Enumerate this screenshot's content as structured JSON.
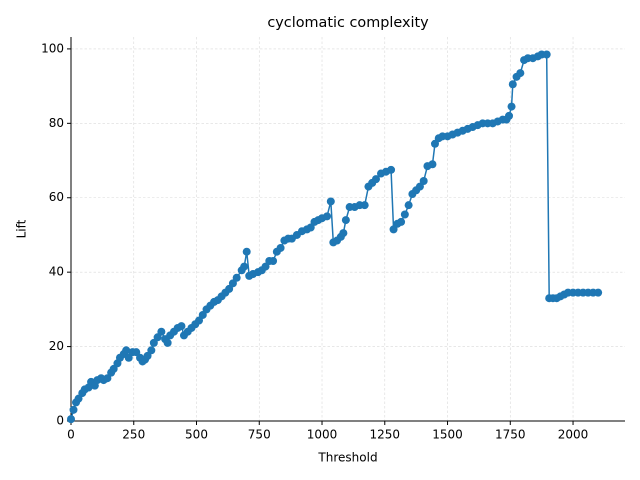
{
  "chart_data": {
    "type": "line",
    "title": "cyclomatic complexity",
    "x_label": "Threshold",
    "y_label": "Lift",
    "color": "#1f77b4",
    "grid": true,
    "markers": true,
    "x": [
      0,
      10,
      20,
      30,
      45,
      55,
      70,
      80,
      95,
      105,
      120,
      130,
      145,
      160,
      170,
      185,
      195,
      210,
      220,
      230,
      245,
      260,
      275,
      285,
      295,
      305,
      320,
      330,
      345,
      360,
      375,
      385,
      395,
      410,
      425,
      440,
      450,
      465,
      480,
      495,
      510,
      525,
      540,
      555,
      570,
      585,
      600,
      615,
      630,
      645,
      660,
      680,
      690,
      700,
      710,
      725,
      745,
      760,
      775,
      790,
      805,
      820,
      835,
      850,
      865,
      880,
      900,
      920,
      940,
      955,
      970,
      985,
      1000,
      1020,
      1035,
      1045,
      1060,
      1075,
      1085,
      1095,
      1110,
      1130,
      1150,
      1170,
      1185,
      1200,
      1215,
      1235,
      1255,
      1275,
      1285,
      1300,
      1315,
      1330,
      1345,
      1360,
      1375,
      1390,
      1405,
      1420,
      1440,
      1450,
      1465,
      1480,
      1500,
      1520,
      1540,
      1560,
      1580,
      1600,
      1620,
      1640,
      1660,
      1680,
      1700,
      1720,
      1735,
      1745,
      1755,
      1760,
      1775,
      1790,
      1805,
      1820,
      1840,
      1860,
      1875,
      1895,
      1905,
      1920,
      1935,
      1950,
      1965,
      1980,
      2000,
      2020,
      2040,
      2060,
      2080,
      2100
    ],
    "values": [
      0.5,
      3,
      5,
      6,
      7.5,
      8.5,
      9,
      10.5,
      9.5,
      11,
      11.5,
      11,
      11.5,
      13,
      14,
      15.5,
      17,
      18,
      19,
      17,
      18.5,
      18.5,
      17,
      16,
      16.5,
      17.5,
      19,
      21,
      22.5,
      24,
      22,
      21,
      23,
      24,
      25,
      25.5,
      23,
      24,
      25,
      26,
      27,
      28.5,
      30,
      31,
      32,
      32.5,
      33.5,
      34.5,
      35.5,
      37,
      38.5,
      40.5,
      41.5,
      45.5,
      39,
      39.5,
      40,
      40.5,
      41.5,
      43,
      43,
      45.5,
      46.5,
      48.5,
      49,
      49,
      50,
      51,
      51.5,
      52,
      53.5,
      54,
      54.5,
      55,
      59,
      48,
      48.5,
      49.5,
      50.5,
      54,
      57.5,
      57.5,
      58,
      58,
      63,
      64,
      65,
      66.5,
      67,
      67.5,
      51.5,
      53,
      53.5,
      55.5,
      58,
      61,
      62,
      63,
      64.5,
      68.5,
      69,
      74.5,
      76,
      76.5,
      76.5,
      77,
      77.5,
      78,
      78.5,
      79,
      79.5,
      80,
      80,
      80,
      80.5,
      81,
      81,
      82,
      84.5,
      90.5,
      92.5,
      93.5,
      97,
      97.5,
      97.5,
      98,
      98.5,
      98.5,
      33,
      33,
      33,
      33.5,
      34,
      34.5,
      34.5,
      34.5,
      34.5,
      34.5,
      34.5,
      34.5
    ],
    "xlim": [
      0,
      2207
    ],
    "ylim": [
      0,
      103.2
    ],
    "xticks": [
      0,
      250,
      500,
      750,
      1000,
      1250,
      1500,
      1750,
      2000
    ],
    "yticks": [
      0,
      20,
      40,
      60,
      80,
      100
    ]
  }
}
